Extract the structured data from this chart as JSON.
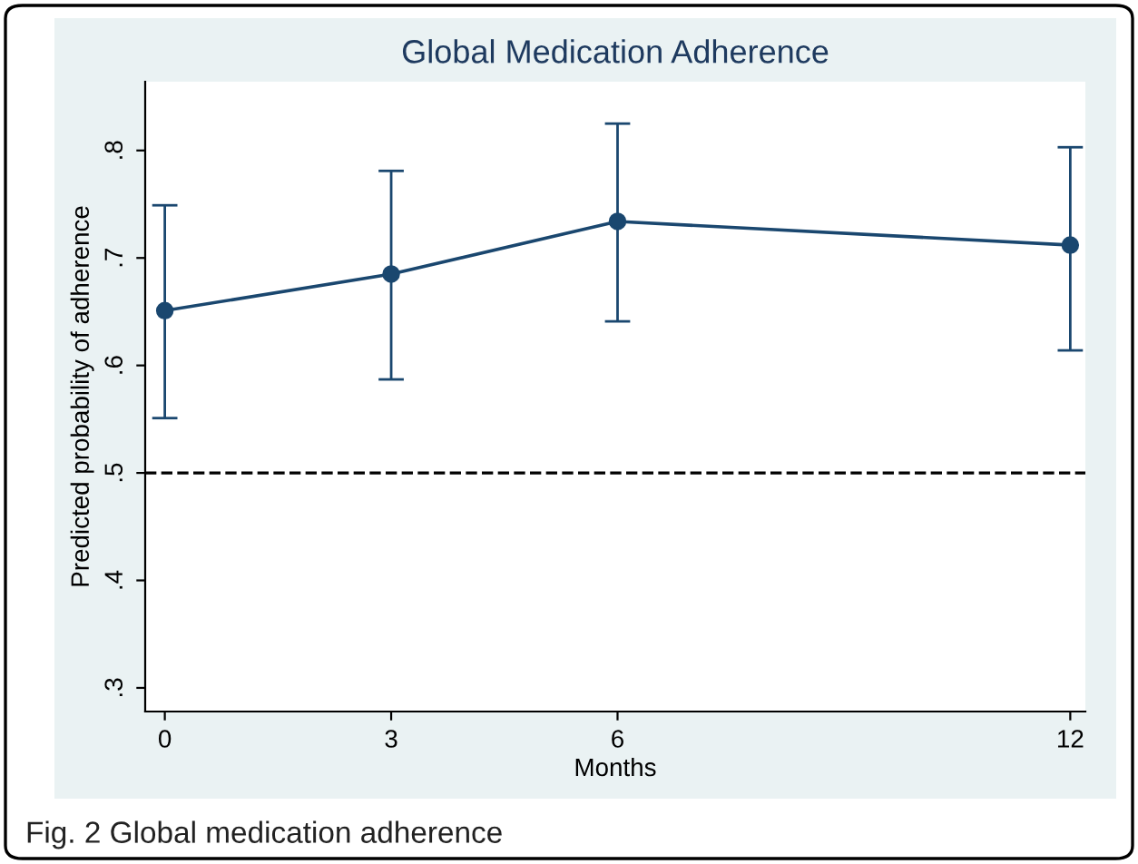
{
  "chart_data": {
    "type": "line",
    "title": "Global Medication Adherence",
    "xlabel": "Months",
    "ylabel": "Predicted probability of adherence",
    "x": [
      0,
      3,
      6,
      12
    ],
    "series": [
      {
        "color": "#1a476f",
        "values": [
          0.651,
          0.685,
          0.734,
          0.712
        ],
        "errors": [
          [
            0.551,
            0.749
          ],
          [
            0.587,
            0.781
          ],
          [
            0.641,
            0.825
          ],
          [
            0.614,
            0.803
          ]
        ]
      }
    ],
    "xlim": [
      -0.26,
      12.2
    ],
    "xticks": [
      0,
      3,
      6,
      12
    ],
    "ylim": [
      0.278,
      0.864
    ],
    "yticks": [
      {
        "value": 0.3,
        "label": ".3"
      },
      {
        "value": 0.4,
        "label": ".4"
      },
      {
        "value": 0.5,
        "label": ".5"
      },
      {
        "value": 0.6,
        "label": ".6"
      },
      {
        "value": 0.7,
        "label": ".7"
      },
      {
        "value": 0.8,
        "label": ".8"
      }
    ],
    "ref_lines": [
      {
        "axis": "y",
        "value": 0.5,
        "color": "#000000",
        "line_style": "dashed"
      }
    ],
    "marker": "circle",
    "line_style": "solid",
    "grid": false,
    "legend": false,
    "annotations": [
      "Fig. 2 Global medication adherence"
    ]
  }
}
